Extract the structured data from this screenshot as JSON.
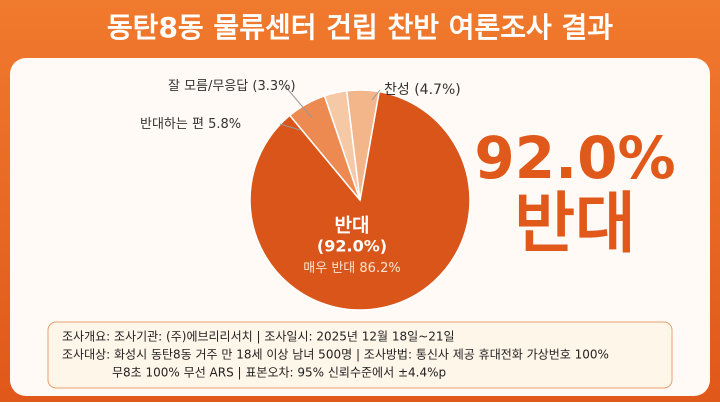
{
  "chart_data": {
    "type": "pie",
    "title": "동탄8동 물류센터 건립 찬반 여론조사 결과",
    "categories": [
      "매우 반대",
      "반대하는 편",
      "잘 모름/무응답",
      "찬성"
    ],
    "values": [
      86.2,
      5.8,
      3.3,
      4.7
    ],
    "value_labels": [
      "86.2%",
      "5.8%",
      "(3.3%)",
      "(4.7%)"
    ],
    "colors": [
      "#d95519",
      "#ec8a52",
      "#f6c9a6",
      "#f3b58a"
    ],
    "annotations": [
      "반대",
      "(92.0%)",
      "92.0%",
      "반대"
    ],
    "notes": [
      "조사개요: 조사기관: (주)에브리리서치 | 조사일시: 2025년 12월 18일~21일",
      "조사대상: 화성시 동탄8동 거주 만 18세 이상 남녀 500명 | 조사방법: 통신사 제공 휴대전화 가상번호 100%",
      "무8초 100% 무선 ARS | 표본오차: 95% 신뢰수준에서 ±4.4%p"
    ]
  }
}
